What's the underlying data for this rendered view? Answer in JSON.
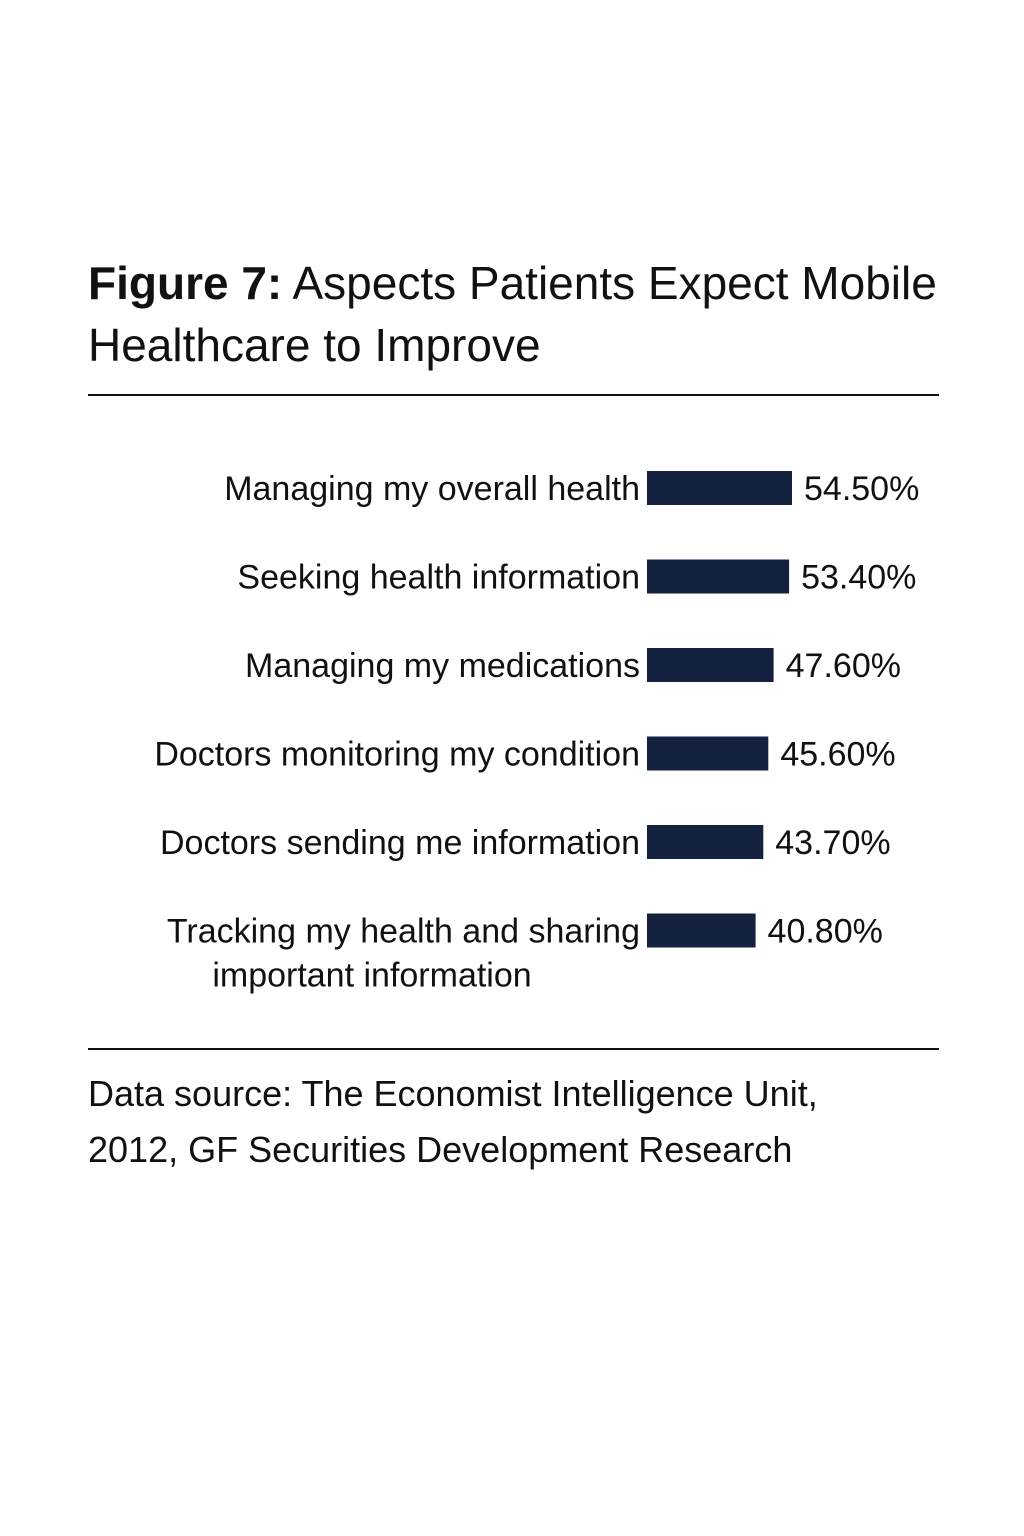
{
  "figure": {
    "label": "Figure 7:",
    "title": "Aspects Patients Expect Mobile Healthcare to Improve"
  },
  "chart_data": {
    "type": "bar",
    "orientation": "horizontal",
    "categories": [
      [
        "Managing my overall health"
      ],
      [
        "Seeking health information"
      ],
      [
        "Managing my medications"
      ],
      [
        "Doctors monitoring my condition"
      ],
      [
        "Doctors sending me information"
      ],
      [
        "Tracking my health and sharing",
        "important information"
      ]
    ],
    "values": [
      54.5,
      53.4,
      47.6,
      45.6,
      43.7,
      40.8
    ],
    "value_labels": [
      "54.50%",
      "53.40%",
      "47.60%",
      "45.60%",
      "43.70%",
      "40.80%"
    ],
    "bar_color": "#14213f",
    "grid": false,
    "legend": "none"
  },
  "source": {
    "line1": "Data source: The Economist Intelligence Unit,",
    "line2": "2012, GF Securities Development Research"
  }
}
